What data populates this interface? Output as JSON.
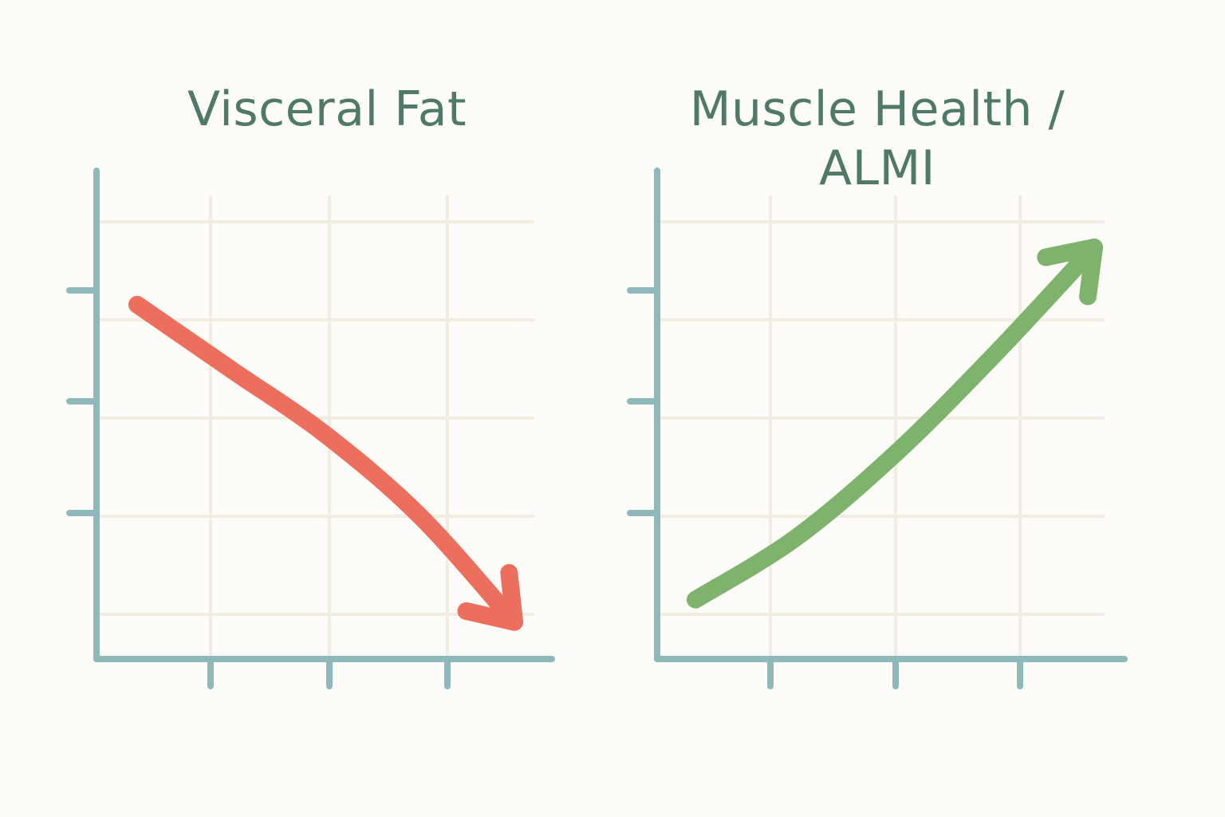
{
  "chart_data": [
    {
      "type": "line",
      "title": "Visceral Fat",
      "xlabel": "",
      "ylabel": "",
      "trend": "decreasing",
      "grid": true,
      "x": [
        0,
        1,
        2,
        3,
        4
      ],
      "y": [
        4.1,
        3.3,
        2.5,
        1.5,
        0.2
      ],
      "colors": {
        "line": "#ec6f5e",
        "axis": "#8fb8bb",
        "grid": "#f1ede3"
      }
    },
    {
      "type": "line",
      "title": "Muscle Health / ALMI",
      "xlabel": "",
      "ylabel": "",
      "trend": "increasing",
      "grid": true,
      "x": [
        0,
        1,
        2,
        3,
        4
      ],
      "y": [
        0.4,
        1.2,
        2.3,
        3.6,
        5.0
      ],
      "colors": {
        "line": "#7eb36d",
        "axis": "#8fb8bb",
        "grid": "#f1ede3"
      }
    }
  ]
}
